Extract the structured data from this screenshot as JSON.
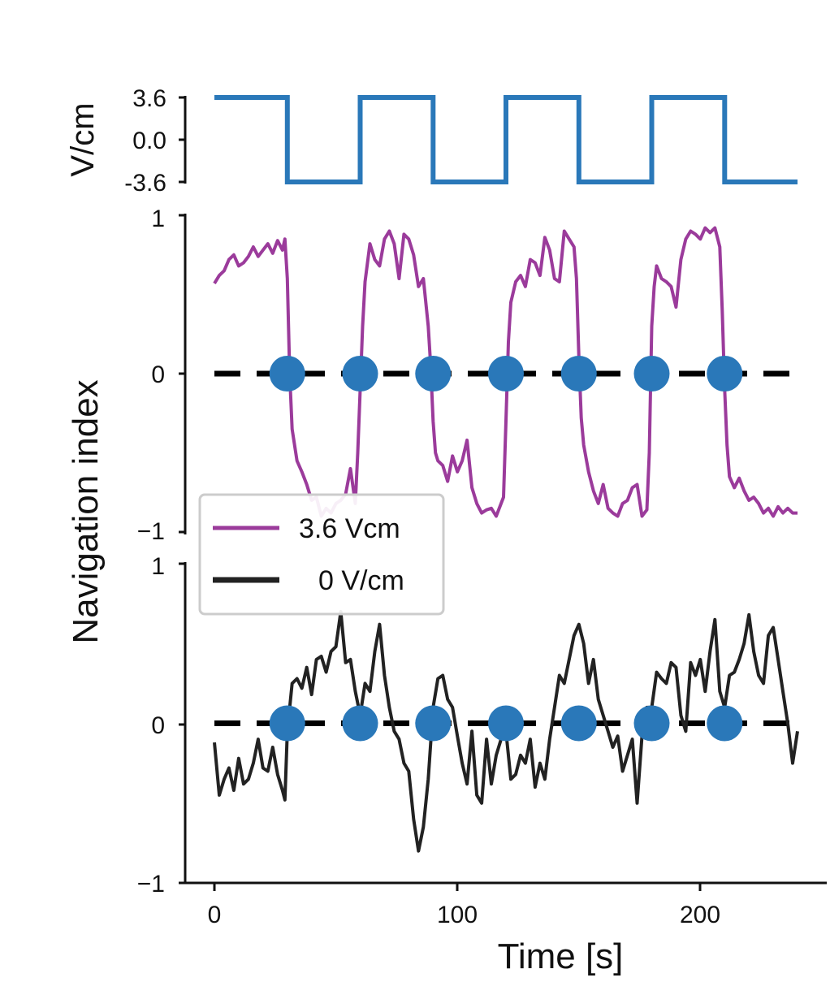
{
  "colors": {
    "stimulus": "#2a78b9",
    "field_trace": "#9b3b9b",
    "control_trace": "#222222",
    "switch_marker": "#2a78b9",
    "zero_line": "#000000"
  },
  "chart_data": [
    {
      "type": "line",
      "panel": "stimulus",
      "ylabel": "V/cm",
      "yticks": [
        "3.6",
        "0.0",
        "-3.6"
      ],
      "ylim": [
        -3.6,
        3.6
      ],
      "xlim": [
        0,
        240
      ],
      "series": [
        {
          "x": [
            0,
            30,
            30,
            60,
            60,
            90,
            90,
            120,
            120,
            150,
            150,
            180,
            180,
            210,
            210,
            240
          ],
          "y": [
            3.6,
            3.6,
            -3.6,
            -3.6,
            3.6,
            3.6,
            -3.6,
            -3.6,
            3.6,
            3.6,
            -3.6,
            -3.6,
            3.6,
            3.6,
            -3.6,
            -3.6
          ]
        }
      ]
    },
    {
      "type": "line",
      "panel": "field",
      "ylabel": "Navigation index",
      "yticks": [
        "1",
        "0",
        "−1"
      ],
      "ylim": [
        -1,
        1
      ],
      "xlim": [
        0,
        240
      ],
      "legend": {
        "placement": "bottom-left",
        "entries": [
          "3.6 Vcm",
          "0 V/cm"
        ]
      },
      "series": [
        {
          "name": "3.6 Vcm",
          "x": [
            0,
            2,
            4,
            6,
            8,
            10,
            12,
            14,
            16,
            18,
            20,
            22,
            24,
            26,
            28,
            29,
            30,
            31,
            32,
            34,
            36,
            38,
            40,
            42,
            44,
            46,
            48,
            50,
            52,
            54,
            56,
            58,
            59,
            60,
            61,
            62,
            64,
            66,
            68,
            70,
            72,
            74,
            76,
            78,
            80,
            82,
            84,
            86,
            88,
            89,
            90,
            91,
            92,
            94,
            96,
            98,
            100,
            102,
            104,
            106,
            108,
            110,
            112,
            114,
            116,
            118,
            119,
            120,
            121,
            122,
            124,
            126,
            128,
            130,
            132,
            134,
            136,
            138,
            140,
            142,
            144,
            146,
            148,
            149,
            150,
            151,
            152,
            154,
            156,
            158,
            160,
            162,
            164,
            166,
            168,
            170,
            172,
            174,
            176,
            178,
            179,
            180,
            181,
            182,
            184,
            186,
            188,
            190,
            192,
            194,
            196,
            198,
            200,
            202,
            204,
            206,
            208,
            209,
            210,
            211,
            212,
            214,
            216,
            218,
            220,
            222,
            224,
            226,
            228,
            230,
            232,
            234,
            236,
            238,
            240
          ],
          "y": [
            0.57,
            0.62,
            0.65,
            0.72,
            0.75,
            0.68,
            0.7,
            0.74,
            0.8,
            0.74,
            0.78,
            0.82,
            0.76,
            0.84,
            0.78,
            0.85,
            0.6,
            0.0,
            -0.35,
            -0.55,
            -0.62,
            -0.7,
            -0.8,
            -0.78,
            -0.9,
            -0.85,
            -0.88,
            -0.82,
            -0.8,
            -0.76,
            -0.6,
            -0.82,
            -0.5,
            -0.1,
            0.3,
            0.58,
            0.82,
            0.72,
            0.68,
            0.85,
            0.9,
            0.82,
            0.6,
            0.88,
            0.85,
            0.75,
            0.55,
            0.6,
            0.3,
            0.05,
            -0.3,
            -0.5,
            -0.55,
            -0.58,
            -0.68,
            -0.52,
            -0.62,
            -0.55,
            -0.42,
            -0.72,
            -0.82,
            -0.88,
            -0.86,
            -0.85,
            -0.9,
            -0.82,
            -0.78,
            -0.3,
            0.2,
            0.45,
            0.58,
            0.62,
            0.55,
            0.72,
            0.7,
            0.62,
            0.86,
            0.78,
            0.6,
            0.58,
            0.9,
            0.85,
            0.8,
            0.6,
            0.1,
            -0.28,
            -0.45,
            -0.62,
            -0.74,
            -0.82,
            -0.7,
            -0.85,
            -0.88,
            -0.9,
            -0.82,
            -0.8,
            -0.72,
            -0.7,
            -0.9,
            -0.86,
            -0.5,
            0.3,
            0.55,
            0.68,
            0.6,
            0.58,
            0.55,
            0.42,
            0.72,
            0.85,
            0.9,
            0.88,
            0.85,
            0.92,
            0.89,
            0.92,
            0.8,
            0.4,
            -0.1,
            -0.45,
            -0.65,
            -0.72,
            -0.66,
            -0.74,
            -0.8,
            -0.78,
            -0.82,
            -0.88,
            -0.85,
            -0.9,
            -0.84,
            -0.88,
            -0.85,
            -0.88,
            -0.88
          ]
        }
      ],
      "switch_markers": {
        "x": [
          30,
          60,
          90,
          120,
          150,
          180,
          210
        ],
        "y": 0
      }
    },
    {
      "type": "line",
      "panel": "control",
      "xlabel": "Time [s]",
      "xticks": [
        "0",
        "100",
        "200"
      ],
      "yticks": [
        "1",
        "0",
        "−1"
      ],
      "ylim": [
        -1,
        1
      ],
      "xlim": [
        0,
        240
      ],
      "series": [
        {
          "name": "0 V/cm",
          "x": [
            0,
            2,
            4,
            6,
            8,
            10,
            12,
            14,
            16,
            18,
            20,
            22,
            24,
            26,
            28,
            29,
            30,
            32,
            34,
            36,
            38,
            40,
            42,
            44,
            46,
            48,
            50,
            52,
            54,
            56,
            58,
            60,
            62,
            64,
            66,
            68,
            70,
            72,
            74,
            76,
            78,
            80,
            82,
            84,
            86,
            88,
            90,
            92,
            94,
            96,
            98,
            100,
            102,
            104,
            106,
            108,
            110,
            112,
            114,
            116,
            118,
            120,
            122,
            124,
            126,
            128,
            130,
            132,
            134,
            136,
            138,
            140,
            142,
            144,
            146,
            148,
            150,
            152,
            154,
            156,
            158,
            160,
            162,
            164,
            166,
            168,
            170,
            172,
            174,
            176,
            178,
            180,
            182,
            184,
            186,
            188,
            190,
            192,
            194,
            196,
            198,
            200,
            202,
            204,
            206,
            208,
            210,
            212,
            214,
            216,
            218,
            220,
            222,
            224,
            226,
            228,
            230,
            232,
            234,
            236,
            238,
            240
          ],
          "y": [
            -0.12,
            -0.45,
            -0.35,
            -0.28,
            -0.42,
            -0.22,
            -0.38,
            -0.35,
            -0.25,
            -0.1,
            -0.28,
            -0.3,
            -0.15,
            -0.32,
            -0.42,
            -0.48,
            -0.05,
            0.25,
            0.28,
            0.22,
            0.35,
            0.18,
            0.4,
            0.42,
            0.32,
            0.45,
            0.48,
            0.7,
            0.38,
            0.4,
            0.2,
            0.05,
            0.25,
            0.2,
            0.45,
            0.62,
            0.3,
            0.1,
            -0.05,
            -0.1,
            -0.25,
            -0.3,
            -0.6,
            -0.8,
            -0.65,
            -0.35,
            0.1,
            0.28,
            0.3,
            0.15,
            0.1,
            -0.08,
            -0.25,
            -0.38,
            -0.05,
            -0.45,
            -0.5,
            -0.1,
            -0.38,
            -0.2,
            -0.1,
            -0.05,
            -0.35,
            -0.32,
            -0.2,
            -0.25,
            -0.1,
            -0.4,
            -0.25,
            -0.35,
            -0.1,
            0.1,
            0.3,
            0.25,
            0.4,
            0.55,
            0.62,
            0.5,
            0.25,
            0.4,
            0.15,
            0.05,
            -0.05,
            -0.15,
            -0.08,
            -0.3,
            -0.2,
            -0.1,
            -0.5,
            -0.08,
            0.1,
            0.1,
            0.32,
            0.28,
            0.25,
            0.38,
            0.35,
            0.05,
            -0.05,
            0.38,
            0.3,
            0.4,
            0.2,
            0.45,
            0.65,
            0.2,
            0.1,
            0.3,
            0.32,
            0.4,
            0.5,
            0.68,
            0.45,
            0.3,
            0.25,
            0.55,
            0.6,
            0.4,
            0.2,
            0.0,
            -0.25,
            -0.05
          ]
        }
      ],
      "switch_markers": {
        "x": [
          30,
          60,
          90,
          120,
          150,
          180,
          210
        ],
        "y": 0
      }
    }
  ]
}
